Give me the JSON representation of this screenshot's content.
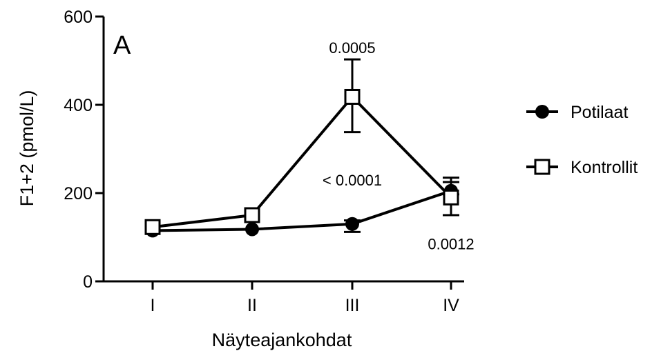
{
  "chart_data": {
    "type": "line",
    "panel_label": "A",
    "xlabel": "Näyteajankohdat",
    "ylabel": "F1+2 (pmol/L)",
    "categories": [
      "I",
      "II",
      "III",
      "IV"
    ],
    "ylim": [
      0,
      600
    ],
    "yticks": [
      0,
      200,
      400,
      600
    ],
    "grid": false,
    "legend_position": "right",
    "series": [
      {
        "name": "Potilaat",
        "marker": "filled-circle",
        "values": [
          115,
          118,
          130,
          205
        ],
        "err_low": [
          5,
          5,
          18,
          8
        ],
        "err_high": [
          5,
          5,
          8,
          30
        ]
      },
      {
        "name": "Kontrollit",
        "marker": "open-square",
        "values": [
          123,
          150,
          418,
          190
        ],
        "err_low": [
          5,
          5,
          80,
          40
        ],
        "err_high": [
          5,
          5,
          85,
          35
        ]
      }
    ],
    "annotations": [
      {
        "text": "0.0005",
        "category": "III",
        "y": 530
      },
      {
        "text": "< 0.0001",
        "category": "III",
        "y": 230
      },
      {
        "text": "0.0012",
        "category": "IV",
        "y": 85
      }
    ]
  }
}
